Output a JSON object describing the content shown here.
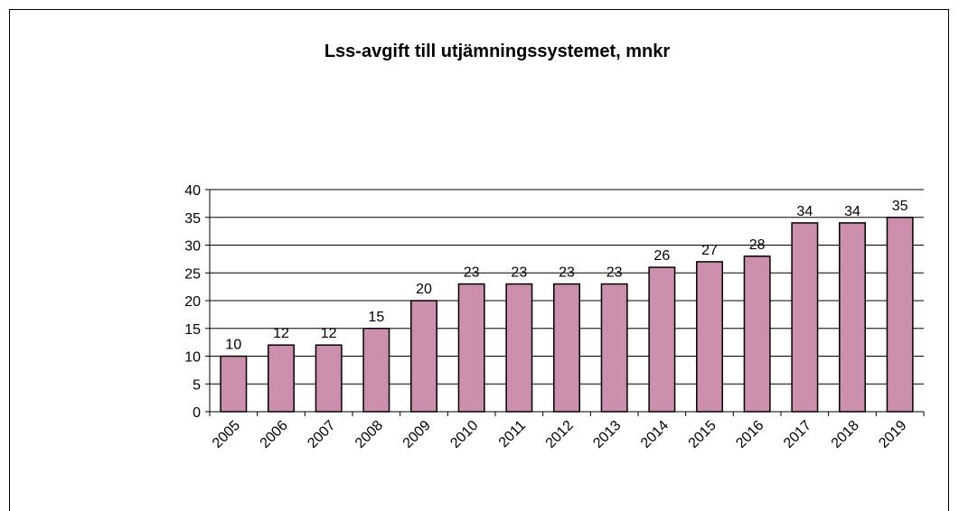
{
  "chart_data": {
    "type": "bar",
    "title": "Lss-avgift till utjämningssystemet, mnkr",
    "categories": [
      "2005",
      "2006",
      "2007",
      "2008",
      "2009",
      "2010",
      "2011",
      "2012",
      "2013",
      "2014",
      "2015",
      "2016",
      "2017",
      "2018",
      "2019"
    ],
    "values": [
      10,
      12,
      12,
      15,
      20,
      23,
      23,
      23,
      23,
      26,
      27,
      28,
      34,
      34,
      35
    ],
    "color": "#cc8fad",
    "ylim": [
      0,
      40
    ],
    "yticks": [
      0,
      5,
      10,
      15,
      20,
      25,
      30,
      35,
      40
    ],
    "grid": true
  }
}
